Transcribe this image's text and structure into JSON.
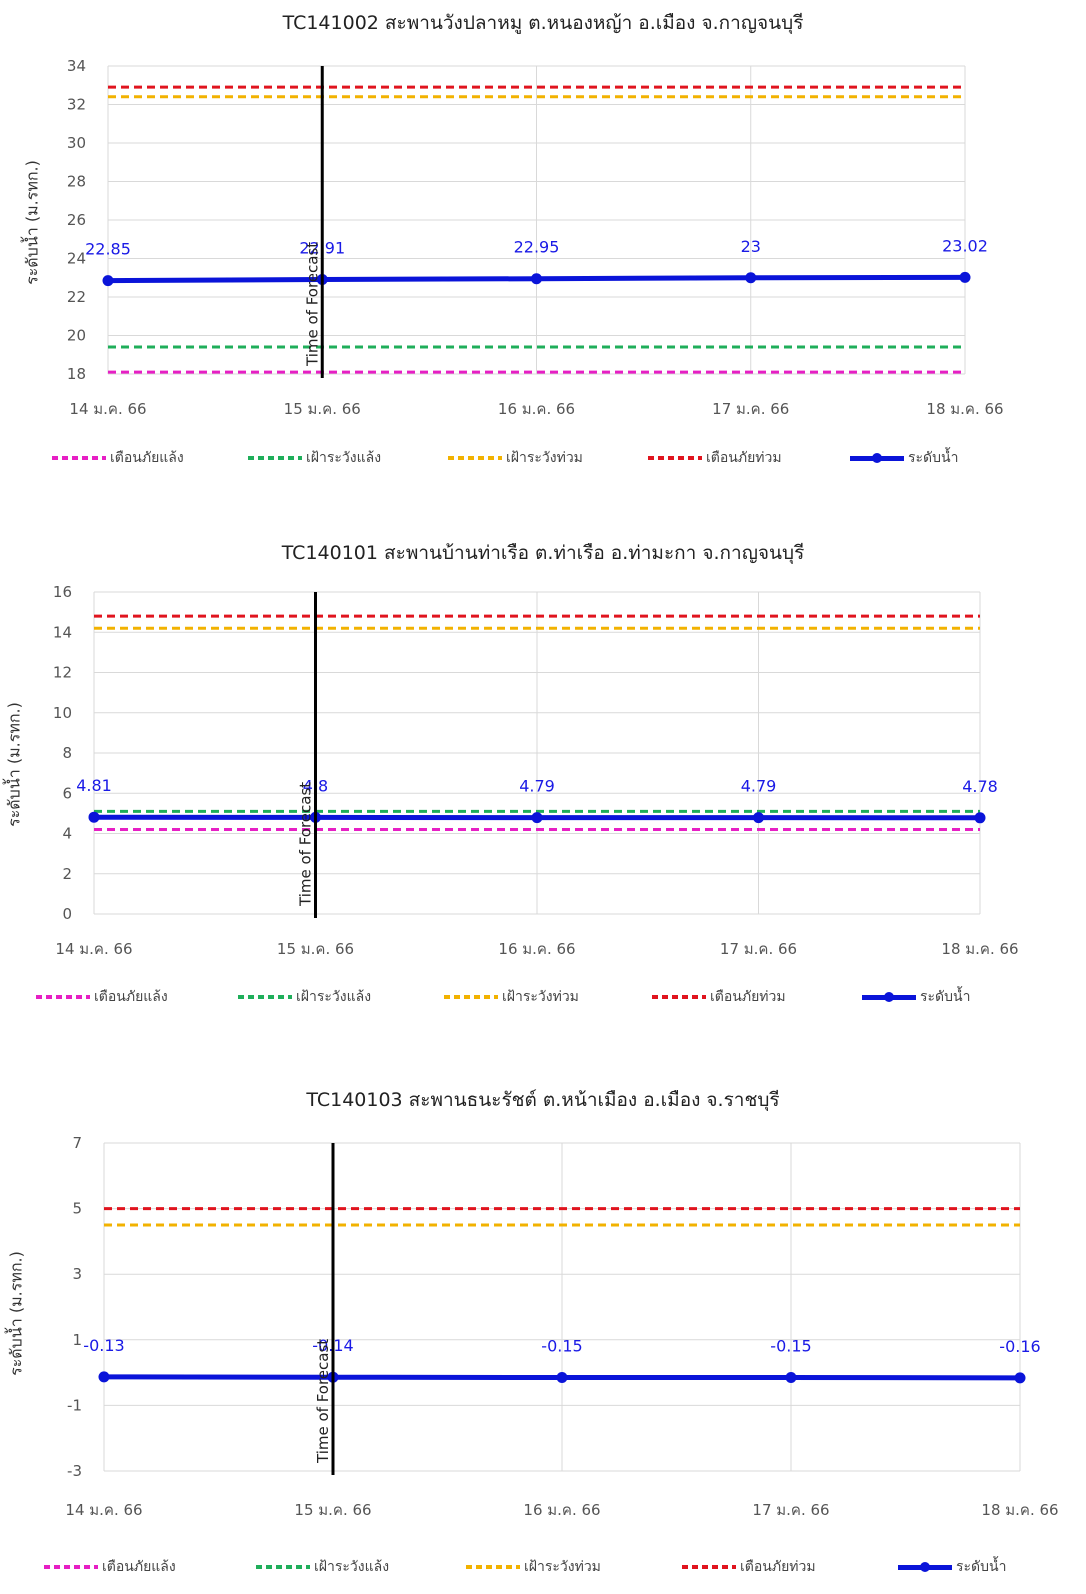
{
  "legend": [
    {
      "label": "เตือนภัยแล้ง",
      "color": "#e61fc4",
      "style": "dashed"
    },
    {
      "label": "เฝ้าระวังแล้ง",
      "color": "#1fae5a",
      "style": "dashed"
    },
    {
      "label": "เฝ้าระวังท่วม",
      "color": "#f2b200",
      "style": "dashed"
    },
    {
      "label": "เตือนภัยท่วม",
      "color": "#e0141e",
      "style": "dashed"
    },
    {
      "label": "ระดับน้ำ",
      "color": "#0a14d9",
      "style": "solid-marker"
    }
  ],
  "forecast_label": "Time of Forecast",
  "chart_data": [
    {
      "type": "line",
      "title": "TC141002 สะพานวังปลาหมู ต.หนองหญ้า อ.เมือง จ.กาญจนบุรี",
      "ylabel": "ระดับน้ำ (ม.รทก.)",
      "x": [
        "14 ม.ค. 66",
        "15 ม.ค. 66",
        "16 ม.ค. 66",
        "17 ม.ค. 66",
        "18 ม.ค. 66"
      ],
      "ylim": [
        18,
        34
      ],
      "yticks": [
        18,
        20,
        22,
        24,
        26,
        28,
        30,
        32,
        34
      ],
      "forecast_index": 1,
      "series": [
        {
          "name": "เตือนภัยแล้ง",
          "values": [
            18.1,
            18.1,
            18.1,
            18.1,
            18.1
          ]
        },
        {
          "name": "เฝ้าระวังแล้ง",
          "values": [
            19.4,
            19.4,
            19.4,
            19.4,
            19.4
          ]
        },
        {
          "name": "เฝ้าระวังท่วม",
          "values": [
            32.4,
            32.4,
            32.4,
            32.4,
            32.4
          ]
        },
        {
          "name": "เตือนภัยท่วม",
          "values": [
            32.9,
            32.9,
            32.9,
            32.9,
            32.9
          ]
        },
        {
          "name": "ระดับน้ำ",
          "values": [
            22.85,
            22.91,
            22.95,
            23,
            23.02
          ],
          "labels": [
            "22.85",
            "22.91",
            "22.95",
            "23",
            "23.02"
          ]
        }
      ]
    },
    {
      "type": "line",
      "title": "TC140101 สะพานบ้านท่าเรือ ต.ท่าเรือ อ.ท่ามะกา จ.กาญจนบุรี",
      "ylabel": "ระดับน้ำ (ม.รทก.)",
      "x": [
        "14 ม.ค. 66",
        "15 ม.ค. 66",
        "16 ม.ค. 66",
        "17 ม.ค. 66",
        "18 ม.ค. 66"
      ],
      "ylim": [
        0,
        16
      ],
      "yticks": [
        0,
        2,
        4,
        6,
        8,
        10,
        12,
        14,
        16
      ],
      "forecast_index": 1,
      "series": [
        {
          "name": "เตือนภัยแล้ง",
          "values": [
            4.2,
            4.2,
            4.2,
            4.2,
            4.2
          ]
        },
        {
          "name": "เฝ้าระวังแล้ง",
          "values": [
            5.1,
            5.1,
            5.1,
            5.1,
            5.1
          ]
        },
        {
          "name": "เฝ้าระวังท่วม",
          "values": [
            14.2,
            14.2,
            14.2,
            14.2,
            14.2
          ]
        },
        {
          "name": "เตือนภัยท่วม",
          "values": [
            14.8,
            14.8,
            14.8,
            14.8,
            14.8
          ]
        },
        {
          "name": "ระดับน้ำ",
          "values": [
            4.81,
            4.8,
            4.79,
            4.79,
            4.78
          ],
          "labels": [
            "4.81",
            "4.8",
            "4.79",
            "4.79",
            "4.78"
          ]
        }
      ]
    },
    {
      "type": "line",
      "title": "TC140103 สะพานธนะรัชต์ ต.หน้าเมือง อ.เมือง จ.ราชบุรี",
      "ylabel": "ระดับน้ำ (ม.รทก.)",
      "x": [
        "14 ม.ค. 66",
        "15 ม.ค. 66",
        "16 ม.ค. 66",
        "17 ม.ค. 66",
        "18 ม.ค. 66"
      ],
      "ylim": [
        -3,
        7
      ],
      "yticks": [
        -3,
        -1,
        1,
        3,
        5,
        7
      ],
      "forecast_index": 1,
      "series": [
        {
          "name": "เฝ้าระวังท่วม",
          "values": [
            4.5,
            4.5,
            4.5,
            4.5,
            4.5
          ]
        },
        {
          "name": "เตือนภัยท่วม",
          "values": [
            5.0,
            5.0,
            5.0,
            5.0,
            5.0
          ]
        },
        {
          "name": "ระดับน้ำ",
          "values": [
            -0.13,
            -0.14,
            -0.15,
            -0.15,
            -0.16
          ],
          "labels": [
            "-0.13",
            "-0.14",
            "-0.15",
            "-0.15",
            "-0.16"
          ]
        }
      ]
    }
  ]
}
